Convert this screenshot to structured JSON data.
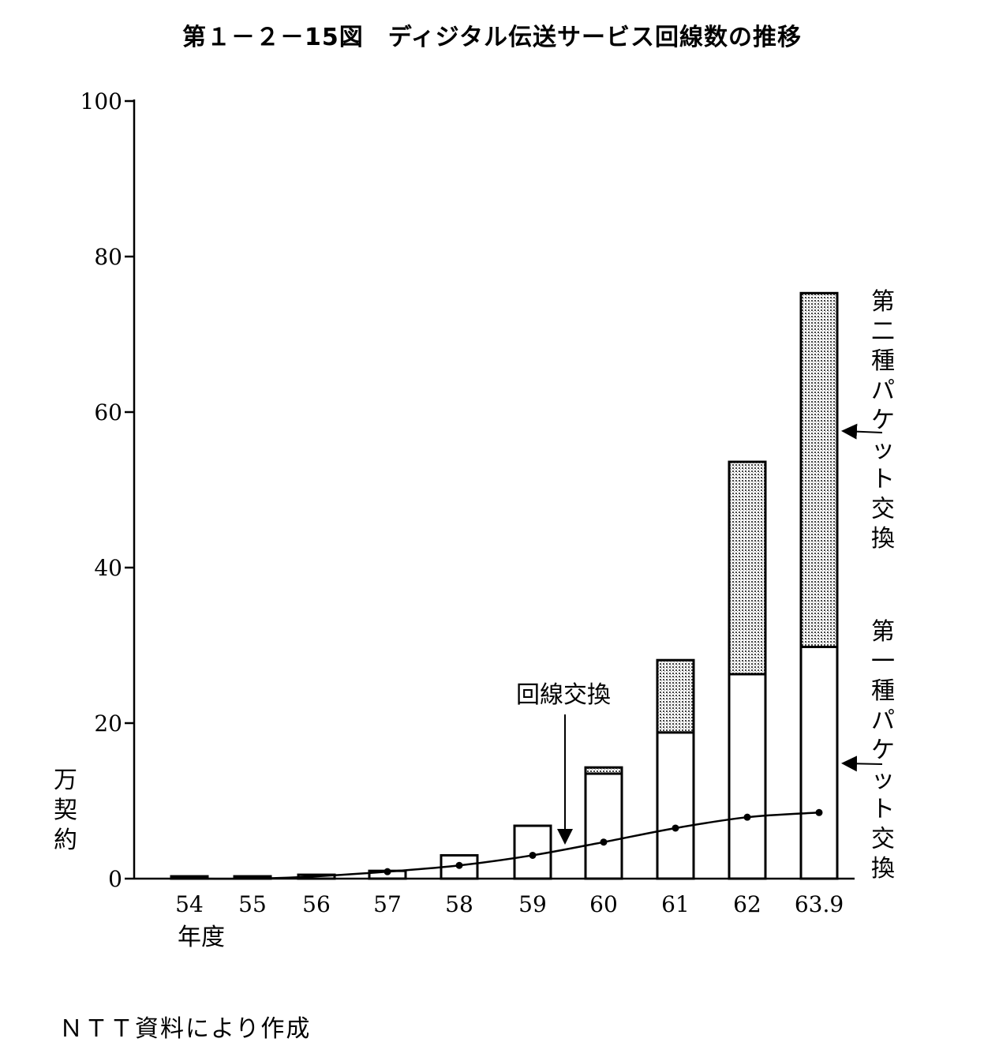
{
  "title": "第１－２－15図　ディジタル伝送サービス回線数の推移",
  "source": "ＮＴＴ資料により作成",
  "chart_data": {
    "type": "bar",
    "stacked": true,
    "ylabel": "万契約",
    "xlabel": "年度",
    "ylim": [
      0,
      100
    ],
    "yticks": [
      0,
      20,
      40,
      60,
      80,
      100
    ],
    "categories": [
      "54",
      "55",
      "56",
      "57",
      "58",
      "59",
      "60",
      "61",
      "62",
      "63.9"
    ],
    "series": [
      {
        "name": "第一種パケット交換",
        "values": [
          0.3,
          0.3,
          0.5,
          1.0,
          3.0,
          6.8,
          13.5,
          18.8,
          26.3,
          29.8
        ],
        "fill": "#ffffff"
      },
      {
        "name": "第二種パケット交換",
        "values": [
          0,
          0,
          0,
          0,
          0,
          0,
          0.8,
          9.3,
          27.3,
          45.5
        ],
        "fill": "dotted"
      }
    ],
    "line_series": {
      "name": "回線交換",
      "values": [
        0,
        0,
        0.3,
        0.9,
        1.7,
        3.0,
        4.7,
        6.5,
        7.9,
        8.5
      ]
    },
    "annotations": {
      "circuit": "回線交換",
      "type2": "第二種パケット交換",
      "type1": "第一種パケット交換"
    }
  }
}
